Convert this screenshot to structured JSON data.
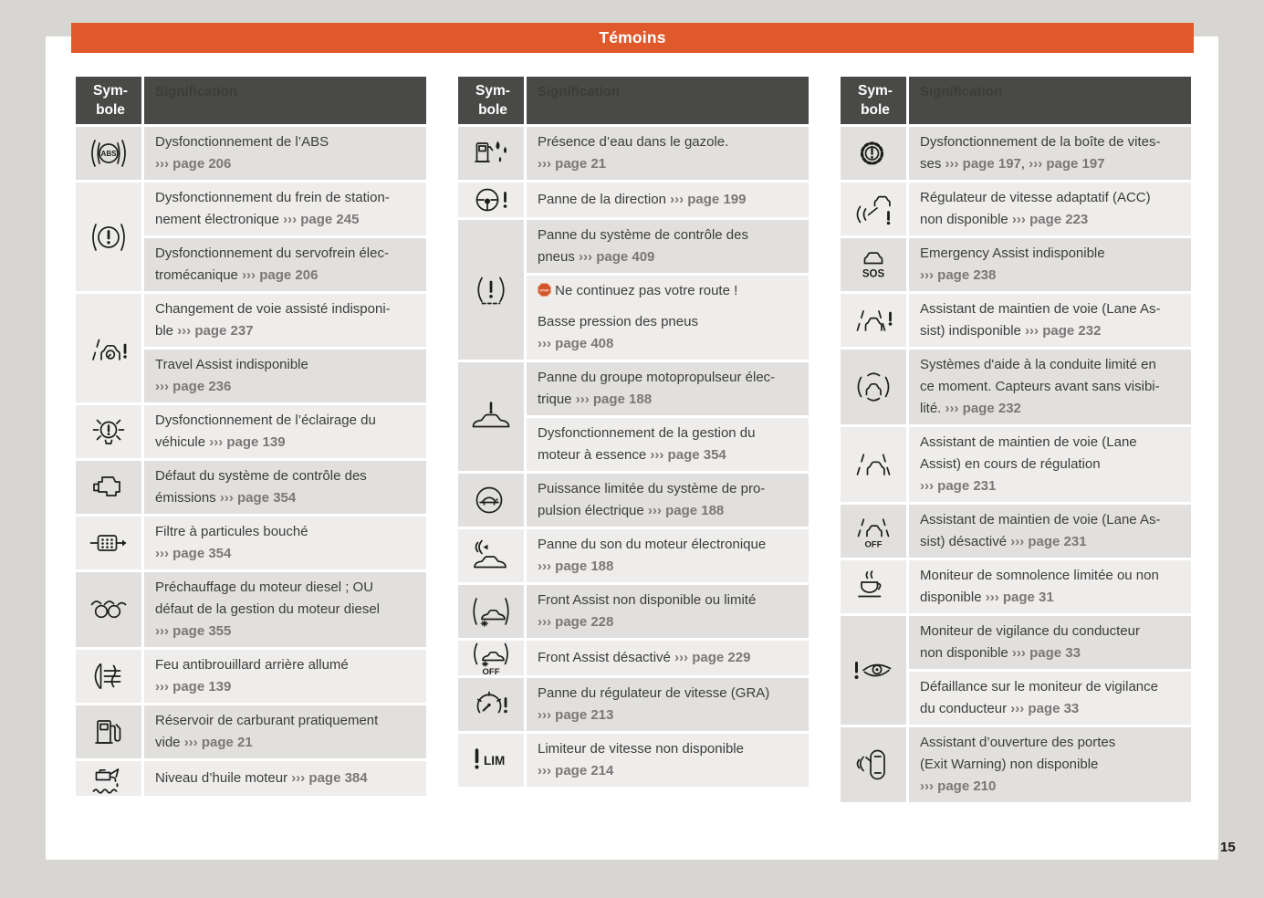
{
  "page": {
    "title": "Témoins",
    "page_number": "15"
  },
  "colors": {
    "accent": "#e0592b",
    "table_header_bg": "#494947",
    "row_dark": "#e1e0de",
    "row_light": "#eeedec",
    "text": "#3c3c3b",
    "link": "#7a7877",
    "page_bg": "#ffffff",
    "canvas_bg": "#d8d6d2",
    "stop": "#d2542b"
  },
  "table_header": {
    "symbol": "Sym­bole",
    "signification": "Signification"
  },
  "stop_badge_label": "STOP",
  "columns": [
    {
      "rows": [
        {
          "icon": "abs-warning-icon",
          "sigs": [
            [
              {
                "text": "Dysfonctionnement de l’ABS"
              },
              {
                "br": true
              },
              {
                "link": "››› page 206"
              }
            ]
          ]
        },
        {
          "icon": "parking-brake-warning-icon",
          "sigs": [
            [
              {
                "text": "Dysfonctionnement du frein de station-"
              },
              {
                "br": true
              },
              {
                "text": "nement électronique "
              },
              {
                "link": "››› page 245"
              }
            ],
            [
              {
                "text": "Dysfonctionnement du servofrein élec-"
              },
              {
                "br": true
              },
              {
                "text": "tromécanique "
              },
              {
                "link": "››› page 206"
              }
            ]
          ]
        },
        {
          "icon": "lane-change-assist-icon",
          "sigs": [
            [
              {
                "text": "Changement de voie assisté indisponi-"
              },
              {
                "br": true
              },
              {
                "text": "ble "
              },
              {
                "link": "››› page 237"
              }
            ],
            [
              {
                "text": "Travel Assist indisponible"
              },
              {
                "br": true
              },
              {
                "link": "››› page 236"
              }
            ]
          ]
        },
        {
          "icon": "vehicle-lighting-warning-icon",
          "sigs": [
            [
              {
                "text": "Dysfonctionnement de l’éclairage du"
              },
              {
                "br": true
              },
              {
                "text": "véhicule "
              },
              {
                "link": "››› page 139"
              }
            ]
          ]
        },
        {
          "icon": "check-engine-icon",
          "sigs": [
            [
              {
                "text": "Défaut du système de contrôle des"
              },
              {
                "br": true
              },
              {
                "text": "émissions "
              },
              {
                "link": "››› page 354"
              }
            ]
          ]
        },
        {
          "icon": "particulate-filter-icon",
          "sigs": [
            [
              {
                "text": "Filtre à particules bouché"
              },
              {
                "br": true
              },
              {
                "link": "››› page 354"
              }
            ]
          ]
        },
        {
          "icon": "glow-plug-icon",
          "sigs": [
            [
              {
                "text": "Préchauffage du moteur diesel ; OU"
              },
              {
                "br": true
              },
              {
                "text": "défaut de la gestion du moteur diesel"
              },
              {
                "br": true
              },
              {
                "link": "››› page 355"
              }
            ]
          ]
        },
        {
          "icon": "rear-fog-light-icon",
          "sigs": [
            [
              {
                "text": "Feu antibrouillard arrière allumé"
              },
              {
                "br": true
              },
              {
                "link": "››› page 139"
              }
            ]
          ]
        },
        {
          "icon": "fuel-reserve-icon",
          "sigs": [
            [
              {
                "text": "Réservoir de carburant pratiquement"
              },
              {
                "br": true
              },
              {
                "text": "vide "
              },
              {
                "link": "››› page 21"
              }
            ]
          ]
        },
        {
          "icon": "oil-level-icon",
          "sigs": [
            [
              {
                "text": "Niveau d’huile moteur "
              },
              {
                "link": "››› page 384"
              }
            ]
          ]
        }
      ]
    },
    {
      "rows": [
        {
          "icon": "water-in-fuel-icon",
          "sigs": [
            [
              {
                "text": "Présence d’eau dans le gazole."
              },
              {
                "br": true
              },
              {
                "link": "››› page 21"
              }
            ]
          ]
        },
        {
          "icon": "steering-failure-icon",
          "sigs": [
            [
              {
                "text": "Panne de la direction "
              },
              {
                "link": "››› page 199"
              }
            ]
          ]
        },
        {
          "icon": "tyre-pressure-icon",
          "sigs": [
            [
              {
                "text": "Panne du système de contrôle des"
              },
              {
                "br": true
              },
              {
                "text": "pneus "
              },
              {
                "link": "››› page 409"
              }
            ],
            [
              {
                "stop": true
              },
              {
                "text": " Ne continuez pas votre route !"
              },
              {
                "pbr": true
              },
              {
                "text": "Basse pression des pneus"
              },
              {
                "br": true
              },
              {
                "link": "››› page 408"
              }
            ]
          ]
        },
        {
          "icon": "drive-system-warning-icon",
          "sigs": [
            [
              {
                "text": "Panne du groupe motopropulseur élec-"
              },
              {
                "br": true
              },
              {
                "text": "trique "
              },
              {
                "link": "››› page 188"
              }
            ],
            [
              {
                "text": "Dysfonctionnement de la gestion du"
              },
              {
                "br": true
              },
              {
                "text": "moteur à essence "
              },
              {
                "link": "››› page 354"
              }
            ]
          ]
        },
        {
          "icon": "power-limited-turtle-icon",
          "sigs": [
            [
              {
                "text": "Puissance limitée du système de pro-"
              },
              {
                "br": true
              },
              {
                "text": "pulsion électrique "
              },
              {
                "link": "››› page 188"
              }
            ]
          ]
        },
        {
          "icon": "ev-engine-sound-icon",
          "sigs": [
            [
              {
                "text": "Panne du son du moteur électronique"
              },
              {
                "br": true
              },
              {
                "link": "››› page 188"
              }
            ]
          ]
        },
        {
          "icon": "front-assist-icon",
          "sigs": [
            [
              {
                "text": "Front Assist non disponible ou limité"
              },
              {
                "br": true
              },
              {
                "link": "››› page 228"
              }
            ]
          ]
        },
        {
          "icon": "front-assist-off-icon",
          "sigs": [
            [
              {
                "text": "Front Assist désactivé "
              },
              {
                "link": "››› page 229"
              }
            ]
          ]
        },
        {
          "icon": "cruise-control-warning-icon",
          "sigs": [
            [
              {
                "text": "Panne du régulateur de vitesse (GRA)"
              },
              {
                "br": true
              },
              {
                "link": "››› page 213"
              }
            ]
          ]
        },
        {
          "icon": "speed-limiter-icon",
          "sigs": [
            [
              {
                "text": "Limiteur de vitesse non disponible"
              },
              {
                "br": true
              },
              {
                "link": "››› page 214"
              }
            ]
          ]
        }
      ]
    },
    {
      "rows": [
        {
          "icon": "gearbox-warning-icon",
          "sigs": [
            [
              {
                "text": "Dysfonctionnement de la boîte de vites-"
              },
              {
                "br": true
              },
              {
                "text": "ses "
              },
              {
                "link": "››› page 197"
              },
              {
                "text": ", "
              },
              {
                "link": "››› page 197"
              }
            ]
          ]
        },
        {
          "icon": "acc-warning-icon",
          "sigs": [
            [
              {
                "text": "Régulateur de vitesse adaptatif (ACC)"
              },
              {
                "br": true
              },
              {
                "text": "non disponible "
              },
              {
                "link": "››› page 223"
              }
            ]
          ]
        },
        {
          "icon": "emergency-assist-icon",
          "sigs": [
            [
              {
                "text": "Emergency Assist indisponible"
              },
              {
                "br": true
              },
              {
                "link": "››› page 238"
              }
            ]
          ]
        },
        {
          "icon": "lane-assist-warning-icon",
          "sigs": [
            [
              {
                "text": "Assistant de maintien de voie (Lane As-"
              },
              {
                "br": true
              },
              {
                "text": "sist) indisponible "
              },
              {
                "link": "››› page 232"
              }
            ]
          ]
        },
        {
          "icon": "driving-assist-limited-icon",
          "sigs": [
            [
              {
                "text": "Systèmes d'aide à la conduite limité en"
              },
              {
                "br": true
              },
              {
                "text": "ce moment. Capteurs avant sans visibi-"
              },
              {
                "br": true
              },
              {
                "text": "lité. "
              },
              {
                "link": "››› page 232"
              }
            ]
          ]
        },
        {
          "icon": "lane-assist-active-icon",
          "sigs": [
            [
              {
                "text": "Assistant de maintien de voie (Lane"
              },
              {
                "br": true
              },
              {
                "text": "Assist) en cours de régulation"
              },
              {
                "br": true
              },
              {
                "link": "››› page 231"
              }
            ]
          ]
        },
        {
          "icon": "lane-assist-off-icon",
          "sigs": [
            [
              {
                "text": "Assistant de maintien de voie (Lane As-"
              },
              {
                "br": true
              },
              {
                "text": "sist) désactivé "
              },
              {
                "link": "››› page 231"
              }
            ]
          ]
        },
        {
          "icon": "drowsiness-monitor-icon",
          "sigs": [
            [
              {
                "text": "Moniteur de somnolence limitée ou non"
              },
              {
                "br": true
              },
              {
                "text": "disponible "
              },
              {
                "link": "››› page 31"
              }
            ]
          ]
        },
        {
          "icon": "driver-vigilance-monitor-icon",
          "sigs": [
            [
              {
                "text": "Moniteur de vigilance du conducteur"
              },
              {
                "br": true
              },
              {
                "text": "non disponible "
              },
              {
                "link": "››› page 33"
              }
            ],
            [
              {
                "text": "Défaillance sur le moniteur de vigilance"
              },
              {
                "br": true
              },
              {
                "text": "du conducteur "
              },
              {
                "link": "››› page 33"
              }
            ]
          ]
        },
        {
          "icon": "exit-warning-icon",
          "sigs": [
            [
              {
                "text": "Assistant d’ouverture des portes"
              },
              {
                "br": true
              },
              {
                "text": "(Exit Warning) non disponible"
              },
              {
                "br": true
              },
              {
                "link": "››› page 210"
              }
            ]
          ]
        }
      ]
    }
  ]
}
